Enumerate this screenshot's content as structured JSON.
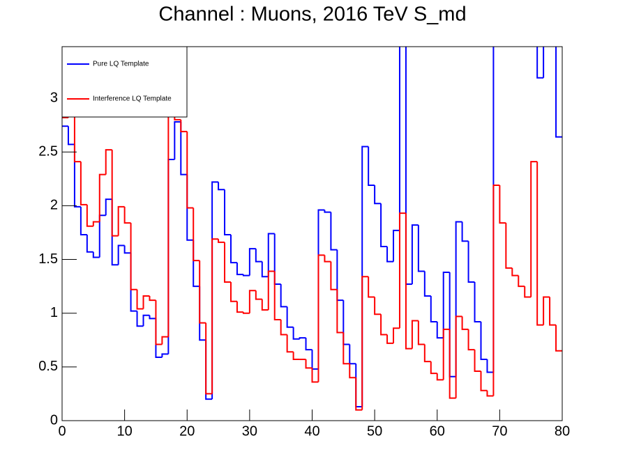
{
  "chart_data": {
    "type": "histogram",
    "title": "Channel : Muons, 2016 TeV S_md",
    "bins": [
      0,
      1,
      2,
      3,
      4,
      5,
      6,
      7,
      8,
      9,
      10,
      11,
      12,
      13,
      14,
      15,
      16,
      17,
      18,
      19,
      20,
      21,
      22,
      23,
      24,
      25,
      26,
      27,
      28,
      29,
      30,
      31,
      32,
      33,
      34,
      35,
      36,
      37,
      38,
      39,
      40,
      41,
      42,
      43,
      44,
      45,
      46,
      47,
      48,
      49,
      50,
      51,
      52,
      53,
      54,
      55,
      56,
      57,
      58,
      59,
      60,
      61,
      62,
      63,
      64,
      65,
      66,
      67,
      68,
      69,
      70,
      71,
      72,
      73,
      74,
      75,
      76,
      77,
      78,
      79,
      80
    ],
    "series": [
      {
        "name": "Pure LQ Template",
        "color": "#0000ff",
        "values": [
          2.74,
          2.57,
          1.99,
          1.73,
          1.57,
          1.52,
          1.91,
          2.06,
          1.45,
          1.63,
          1.56,
          1.02,
          0.88,
          0.98,
          0.95,
          0.59,
          0.62,
          2.43,
          2.78,
          2.29,
          1.68,
          1.25,
          0.75,
          0.2,
          2.22,
          2.15,
          1.73,
          1.47,
          1.36,
          1.35,
          1.6,
          1.48,
          1.34,
          1.74,
          1.27,
          1.06,
          0.87,
          0.76,
          0.77,
          0.66,
          0.48,
          1.96,
          1.94,
          1.59,
          1.12,
          0.71,
          0.53,
          0.13,
          2.55,
          2.19,
          2.02,
          1.62,
          1.48,
          1.77,
          3.6,
          1.27,
          1.82,
          1.39,
          1.16,
          0.92,
          0.77,
          1.38,
          0.41,
          1.85,
          1.67,
          1.29,
          0.92,
          0.57,
          0.45,
          3.6,
          3.6,
          3.6,
          3.6,
          3.6,
          3.6,
          3.6,
          3.19,
          3.6,
          3.6,
          2.64
        ]
      },
      {
        "name": "Interference LQ Template",
        "color": "#ff0000",
        "values": [
          2.82,
          3.2,
          2.41,
          2.01,
          1.81,
          1.85,
          2.29,
          2.52,
          1.72,
          1.99,
          1.84,
          1.22,
          1.04,
          1.16,
          1.12,
          0.71,
          0.78,
          2.9,
          2.8,
          2.69,
          1.98,
          1.49,
          0.91,
          0.25,
          1.69,
          1.66,
          1.29,
          1.11,
          1.01,
          1.0,
          1.21,
          1.13,
          1.03,
          1.39,
          0.94,
          0.8,
          0.64,
          0.57,
          0.57,
          0.49,
          0.36,
          1.54,
          1.48,
          1.22,
          0.82,
          0.53,
          0.4,
          0.1,
          1.34,
          1.15,
          0.99,
          0.8,
          0.72,
          0.86,
          1.93,
          0.67,
          0.93,
          0.71,
          0.55,
          0.44,
          0.38,
          0.85,
          0.21,
          0.97,
          0.85,
          0.66,
          0.46,
          0.28,
          0.23,
          2.19,
          1.84,
          1.42,
          1.35,
          1.25,
          1.15,
          2.41,
          0.89,
          1.15,
          0.89,
          0.65
        ]
      }
    ],
    "xlim": [
      0,
      80
    ],
    "xticks": [
      0,
      10,
      20,
      30,
      40,
      50,
      60,
      70,
      80
    ],
    "ylim": [
      0,
      3.48
    ],
    "yticks": [
      0,
      0.5,
      1,
      1.5,
      2,
      2.5,
      3
    ],
    "legend": "top-left"
  }
}
